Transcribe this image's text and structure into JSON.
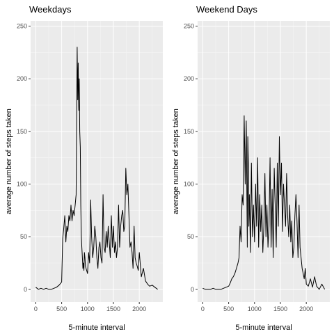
{
  "chart_data": [
    {
      "type": "line",
      "title": "Weekdays",
      "xlabel": "5-minute interval",
      "ylabel": "average number of steps taken",
      "xlim": [
        -100,
        2455
      ],
      "ylim": [
        -12,
        255
      ],
      "xticks": [
        0,
        500,
        1000,
        1500,
        2000
      ],
      "yticks": [
        0,
        50,
        100,
        150,
        200,
        250
      ],
      "grid": true,
      "legend": "none",
      "line_color": "#000000",
      "panel_color": "#ebebeb",
      "series": [
        {
          "x": [
            0,
            50,
            100,
            150,
            200,
            250,
            300,
            350,
            400,
            450,
            500,
            520,
            540,
            560,
            580,
            600,
            620,
            640,
            660,
            680,
            700,
            720,
            740,
            760,
            780,
            800,
            810,
            820,
            830,
            840,
            850,
            860,
            870,
            880,
            890,
            900,
            910,
            920,
            930,
            940,
            950,
            960,
            1000,
            1020,
            1040,
            1060,
            1080,
            1100,
            1120,
            1140,
            1160,
            1180,
            1200,
            1220,
            1240,
            1260,
            1280,
            1300,
            1320,
            1340,
            1360,
            1380,
            1400,
            1420,
            1440,
            1460,
            1480,
            1500,
            1520,
            1540,
            1560,
            1580,
            1600,
            1620,
            1640,
            1660,
            1680,
            1700,
            1720,
            1740,
            1760,
            1780,
            1800,
            1820,
            1840,
            1860,
            1880,
            1900,
            1920,
            1940,
            1960,
            1980,
            2000,
            2040,
            2080,
            2120,
            2160,
            2200,
            2250,
            2300,
            2355
          ],
          "y": [
            2,
            0,
            1,
            0,
            1,
            0,
            0,
            1,
            2,
            4,
            7,
            48,
            58,
            70,
            45,
            60,
            55,
            70,
            65,
            80,
            65,
            75,
            70,
            80,
            90,
            230,
            180,
            215,
            170,
            200,
            150,
            135,
            80,
            50,
            40,
            30,
            20,
            25,
            18,
            35,
            30,
            22,
            15,
            35,
            25,
            85,
            50,
            30,
            40,
            60,
            50,
            30,
            20,
            40,
            45,
            30,
            25,
            90,
            40,
            35,
            55,
            40,
            60,
            45,
            30,
            70,
            40,
            60,
            35,
            45,
            30,
            40,
            80,
            40,
            60,
            70,
            75,
            55,
            60,
            115,
            90,
            100,
            70,
            40,
            45,
            35,
            20,
            60,
            30,
            25,
            22,
            18,
            35,
            12,
            20,
            8,
            5,
            3,
            4,
            2,
            0
          ]
        }
      ]
    },
    {
      "type": "line",
      "title": "Weekend Days",
      "xlabel": "5-minute interval",
      "ylabel": "average number of steps taken",
      "xlim": [
        -100,
        2455
      ],
      "ylim": [
        -12,
        255
      ],
      "xticks": [
        0,
        500,
        1000,
        1500,
        2000
      ],
      "yticks": [
        0,
        50,
        100,
        150,
        200,
        250
      ],
      "grid": true,
      "legend": "none",
      "line_color": "#000000",
      "panel_color": "#ebebeb",
      "series": [
        {
          "x": [
            0,
            50,
            100,
            150,
            200,
            250,
            300,
            350,
            400,
            450,
            500,
            530,
            560,
            590,
            620,
            650,
            680,
            700,
            720,
            740,
            760,
            780,
            800,
            820,
            840,
            860,
            870,
            880,
            890,
            900,
            920,
            940,
            960,
            980,
            1000,
            1020,
            1040,
            1060,
            1080,
            1100,
            1120,
            1140,
            1160,
            1180,
            1200,
            1220,
            1240,
            1260,
            1280,
            1300,
            1320,
            1340,
            1360,
            1380,
            1400,
            1420,
            1440,
            1460,
            1480,
            1500,
            1520,
            1540,
            1560,
            1580,
            1600,
            1620,
            1640,
            1660,
            1680,
            1700,
            1720,
            1740,
            1760,
            1780,
            1800,
            1820,
            1840,
            1860,
            1880,
            1900,
            1920,
            1940,
            1960,
            1980,
            2000,
            2040,
            2080,
            2120,
            2160,
            2200,
            2250,
            2300,
            2355
          ],
          "y": [
            1,
            0,
            0,
            0,
            1,
            0,
            0,
            0,
            1,
            2,
            3,
            6,
            10,
            12,
            15,
            20,
            25,
            30,
            60,
            45,
            90,
            80,
            165,
            100,
            160,
            40,
            145,
            120,
            60,
            90,
            35,
            120,
            50,
            80,
            45,
            100,
            60,
            125,
            40,
            90,
            55,
            80,
            35,
            60,
            110,
            50,
            80,
            40,
            60,
            125,
            40,
            95,
            30,
            115,
            80,
            40,
            120,
            60,
            145,
            90,
            120,
            55,
            100,
            80,
            60,
            110,
            70,
            50,
            80,
            45,
            65,
            30,
            40,
            70,
            90,
            65,
            30,
            80,
            40,
            30,
            20,
            15,
            10,
            20,
            5,
            3,
            10,
            2,
            12,
            3,
            0,
            5,
            0
          ]
        }
      ]
    }
  ]
}
